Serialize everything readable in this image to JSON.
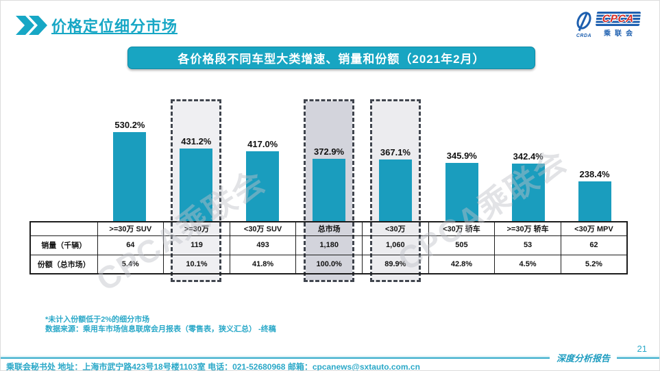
{
  "header": {
    "title": "价格定位细分市场"
  },
  "logo": {
    "cpca": "CPCA",
    "sub": "乘联会",
    "crda": "CRDA"
  },
  "watermark": {
    "text": "CPCA乘联会"
  },
  "chart_data": {
    "type": "bar",
    "title": "各价格段不同车型大类增速、销量和份额（2021年2月）",
    "bar_color": "#1a9dbe",
    "categories": [
      ">=30万 SUV",
      ">=30万",
      "<30万 SUV",
      "总市场",
      "<30万",
      "<30万 轿车",
      ">=30万 轿车",
      "<30万 MPV"
    ],
    "series": [
      {
        "name": "增速",
        "values": [
          530.2,
          431.2,
          417.0,
          372.9,
          367.1,
          345.9,
          342.4,
          238.4
        ],
        "value_labels": [
          "530.2%",
          "431.2%",
          "417.0%",
          "372.9%",
          "367.1%",
          "345.9%",
          "342.4%",
          "238.4%"
        ]
      }
    ],
    "highlights": [
      {
        "category": ">=30万",
        "index": 1,
        "fill": "#EFEFF2"
      },
      {
        "category": "总市场",
        "index": 3,
        "fill": "#D3D4DC"
      },
      {
        "category": "<30万",
        "index": 4,
        "fill": "#ECECEF"
      }
    ],
    "table": {
      "row_headers": [
        "销量（千辆）",
        "份额（总市场）"
      ],
      "rows": [
        [
          "64",
          "119",
          "493",
          "1,180",
          "1,060",
          "505",
          "53",
          "62"
        ],
        [
          "5.4%",
          "10.1%",
          "41.8%",
          "100.0%",
          "89.9%",
          "42.8%",
          "4.5%",
          "5.2%"
        ]
      ]
    },
    "ylim": [
      0,
      600
    ],
    "grid": false,
    "legend": false
  },
  "footnotes": {
    "line1": "*未计入份额低于2%的细分市场",
    "line2": "数据来源：乘用车市场信息联席会月报表（零售表，狭义汇总） -终稿"
  },
  "footer": {
    "contact": "乘联会秘书处   地址：上海市武宁路423号18号楼1103室 电话：021-52680968  邮箱：cpcanews@sxtauto.com.cn",
    "report_label": "深度分析报告",
    "page_number": "21"
  },
  "colors": {
    "accent_teal": "#17a7c5",
    "bar_teal": "#1a9dbe",
    "dashed_border": "#40454e"
  }
}
